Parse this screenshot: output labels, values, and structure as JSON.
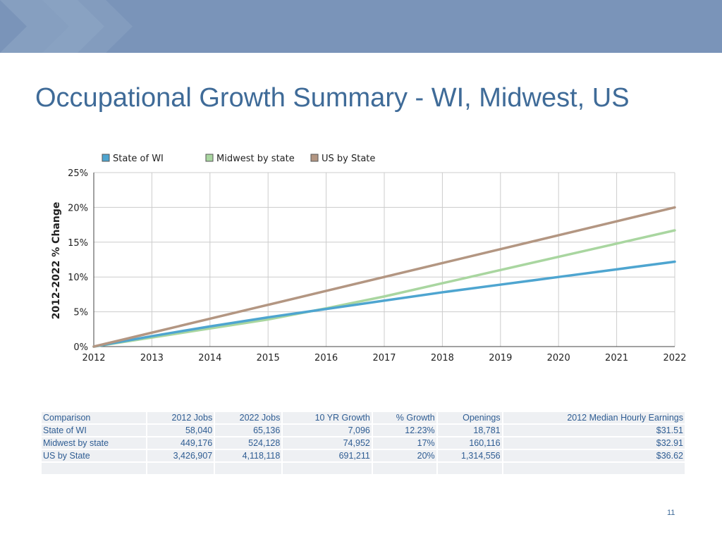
{
  "slide": {
    "title": "Occupational Growth Summary - WI, Midwest, US",
    "page_number": "11"
  },
  "colors": {
    "banner": "#7a94b9",
    "title": "#3f6b98",
    "state_of_wi": "#4ea5d0",
    "midwest": "#a9d6a0",
    "us": "#b39682"
  },
  "chart_data": {
    "type": "line",
    "title": "",
    "xlabel": "",
    "ylabel": "2012-2022 % Change",
    "x": [
      2012,
      2013,
      2014,
      2015,
      2016,
      2017,
      2018,
      2019,
      2020,
      2021,
      2022
    ],
    "x_tick_labels": [
      "2012",
      "2013",
      "2014",
      "2015",
      "2016",
      "2017",
      "2018",
      "2019",
      "2020",
      "2021",
      "2022"
    ],
    "y_tick_labels": [
      "0%",
      "5%",
      "10%",
      "15%",
      "20%",
      "25%"
    ],
    "ylim": [
      0,
      25
    ],
    "grid": true,
    "legend_position": "top-left",
    "series": [
      {
        "name": "State of WI",
        "color": "#4ea5d0",
        "values": [
          0,
          1.5,
          2.9,
          4.2,
          5.4,
          6.6,
          7.8,
          8.9,
          10.0,
          11.1,
          12.2
        ]
      },
      {
        "name": "Midwest by state",
        "color": "#a9d6a0",
        "values": [
          0,
          1.3,
          2.6,
          3.9,
          5.5,
          7.2,
          9.1,
          11.0,
          12.9,
          14.8,
          16.7
        ]
      },
      {
        "name": "US by State",
        "color": "#b39682",
        "values": [
          0,
          2.0,
          4.0,
          6.0,
          8.0,
          10.0,
          12.0,
          14.0,
          16.0,
          18.0,
          20.0
        ]
      }
    ]
  },
  "table": {
    "headers": [
      "Comparison",
      "2012 Jobs",
      "2022 Jobs",
      "10 YR Growth",
      "% Growth",
      "Openings",
      "2012 Median Hourly Earnings"
    ],
    "rows": [
      [
        "State of WI",
        "58,040",
        "65,136",
        "7,096",
        "12.23%",
        "18,781",
        "$31.51"
      ],
      [
        "Midwest by state",
        "449,176",
        "524,128",
        "74,952",
        "17%",
        "160,116",
        "$32.91"
      ],
      [
        "US by State",
        "3,426,907",
        "4,118,118",
        "691,211",
        "20%",
        "1,314,556",
        "$36.62"
      ]
    ]
  }
}
